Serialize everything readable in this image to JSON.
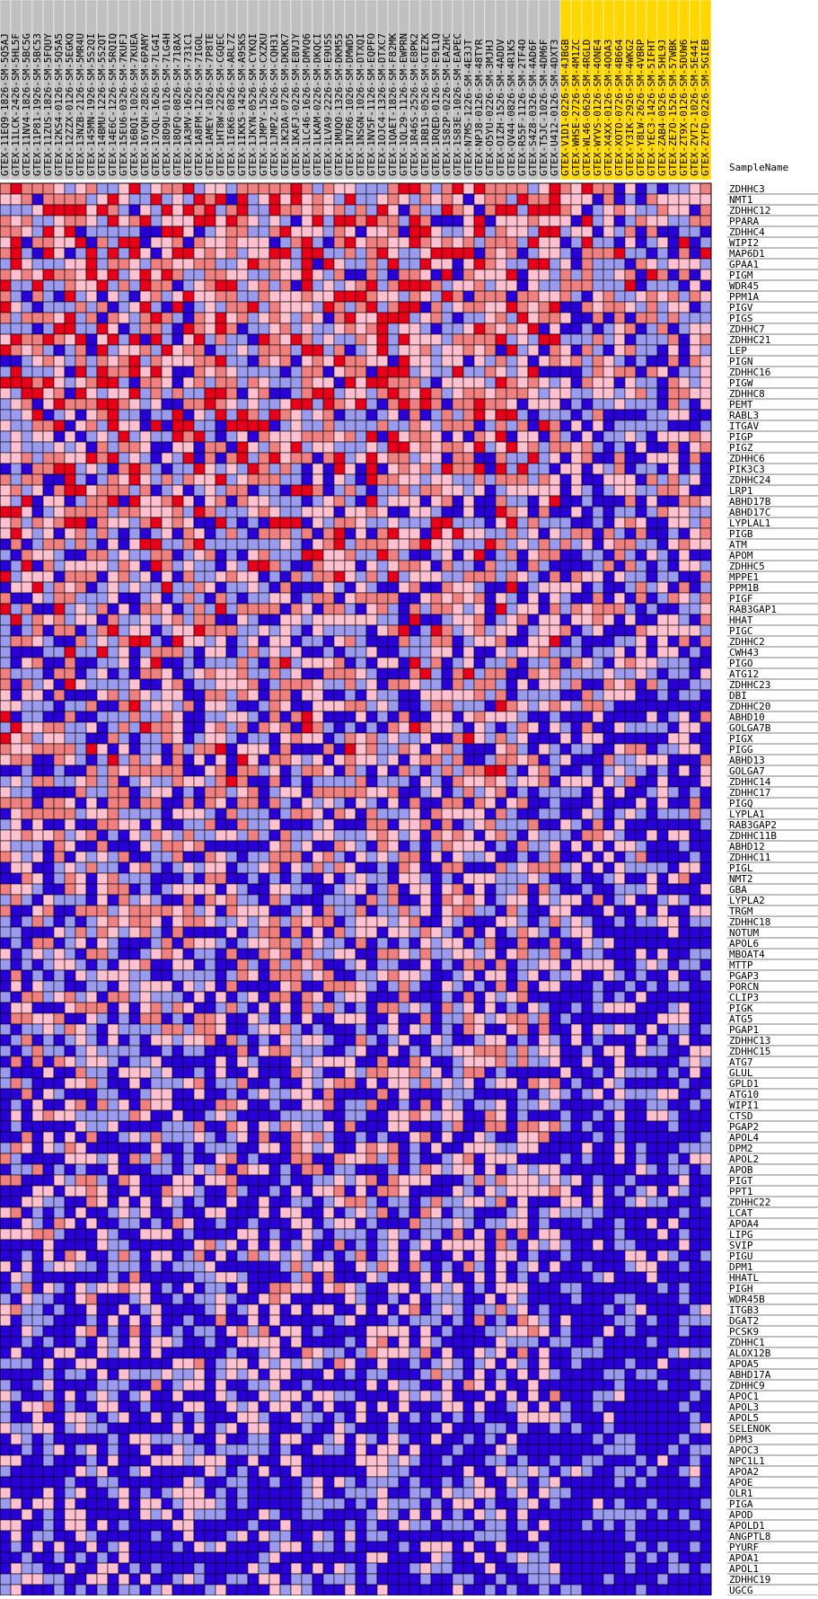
{
  "chart_data": {
    "type": "heatmap",
    "title": "",
    "xlabel": "",
    "ylabel": "",
    "row_header": "SampleName",
    "colors": {
      "high": "#e8001a",
      "mid_high": "#f08080",
      "mid": "#ffc0d0",
      "mid_low": "#9a9aee",
      "low": "#2a00d8",
      "group_a_header": "#c0c0c0",
      "group_b_header": "#ffd700"
    },
    "columns": [
      {
        "label": "GTEX-11EQ9-1826-SM-5Q5AJ",
        "group": "a"
      },
      {
        "label": "GTEX-11LCK-2426-SM-5HL5F",
        "group": "a"
      },
      {
        "label": "GTEX-11NV4-1826-SM-5BC5G",
        "group": "a"
      },
      {
        "label": "GTEX-11P81-1926-SM-5BC53",
        "group": "a"
      },
      {
        "label": "GTEX-11ZUS-1826-SM-5FQUY",
        "group": "a"
      },
      {
        "label": "GTEX-12KS4-0126-SM-5Q5A5",
        "group": "a"
      },
      {
        "label": "GTEX-12ZZX-0126-SM-5EGKQ",
        "group": "a"
      },
      {
        "label": "GTEX-13NZB-2126-SM-5MR4U",
        "group": "a"
      },
      {
        "label": "GTEX-145MN-1926-SM-5S2QI",
        "group": "a"
      },
      {
        "label": "GTEX-14BMU-1226-SM-5S2QT",
        "group": "a"
      },
      {
        "label": "GTEX-14E6C-1226-SM-5RQIQ",
        "group": "a"
      },
      {
        "label": "GTEX-15EU6-0326-SM-7KUFJ",
        "group": "a"
      },
      {
        "label": "GTEX-16BQI-1026-SM-7KUEA",
        "group": "a"
      },
      {
        "label": "GTEX-16YQH-2826-SM-6PAMY",
        "group": "a"
      },
      {
        "label": "GTEX-17GQL-1626-SM-7LG4I",
        "group": "a"
      },
      {
        "label": "GTEX-18D9U-0126-SM-7LG4H",
        "group": "a"
      },
      {
        "label": "GTEX-18QFQ-0826-SM-718AX",
        "group": "a"
      },
      {
        "label": "GTEX-1A3MV-1626-SM-731C1",
        "group": "a"
      },
      {
        "label": "GTEX-1A8FM-1226-SM-7IGOL",
        "group": "a"
      },
      {
        "label": "GTEX-1AMEY-1026-SM-7P8TE",
        "group": "a"
      },
      {
        "label": "GTEX-1HT8W-2226-SM-CGQEC",
        "group": "a"
      },
      {
        "label": "GTEX-1I6K6-0826-SM-ARL7Z",
        "group": "a"
      },
      {
        "label": "GTEX-1IKK5-1426-SM-A9SKS",
        "group": "a"
      },
      {
        "label": "GTEX-1JKYN-0526-SM-CYKQI",
        "group": "a"
      },
      {
        "label": "GTEX-1JMPY-1526-SM-CXZKU",
        "group": "a"
      },
      {
        "label": "GTEX-1JMPZ-1626-SM-CQH31",
        "group": "a"
      },
      {
        "label": "GTEX-1K2DA-0726-SM-DKDK7",
        "group": "a"
      },
      {
        "label": "GTEX-1KAFJ-0226-SM-E8VJY",
        "group": "a"
      },
      {
        "label": "GTEX-1LC46-1626-SM-DMVQ6",
        "group": "a"
      },
      {
        "label": "GTEX-1LKAM-0226-SM-DKQCI",
        "group": "a"
      },
      {
        "label": "GTEX-1LVA9-2226-SM-E9U5S",
        "group": "a"
      },
      {
        "label": "GTEX-1MUQO-1326-SM-DKM55",
        "group": "a"
      },
      {
        "label": "GTEX-1N7R6-1026-SM-DMWD5",
        "group": "a"
      },
      {
        "label": "GTEX-1NSGN-1026-SM-DTXQI",
        "group": "a"
      },
      {
        "label": "GTEX-1NV5F-1126-SM-EQPFO",
        "group": "a"
      },
      {
        "label": "GTEX-1OJC4-1326-SM-DTXC7",
        "group": "a"
      },
      {
        "label": "GTEX-1QAET-1826-SM-F82MK",
        "group": "a"
      },
      {
        "label": "GTEX-1QL29-1126-SM-EWPRN",
        "group": "a"
      },
      {
        "label": "GTEX-1R46S-2526-SM-E8PK2",
        "group": "a"
      },
      {
        "label": "GTEX-1RB15-0526-SM-GTEZK",
        "group": "a"
      },
      {
        "label": "GTEX-1RQED-0126-SM-E9L1Q",
        "group": "a"
      },
      {
        "label": "GTEX-1S82P-0226-SM-EAZHC",
        "group": "a"
      },
      {
        "label": "GTEX-1S83E-1026-SM-EAPEC",
        "group": "a"
      },
      {
        "label": "GTEX-N7MS-1226-SM-4E3JT",
        "group": "a"
      },
      {
        "label": "GTEX-NPJ8-0126-SM-48TYR",
        "group": "a"
      },
      {
        "label": "GTEX-O5YU-0226-SM-3MJHJ",
        "group": "a"
      },
      {
        "label": "GTEX-OIZH-1526-SM-4ADDV",
        "group": "a"
      },
      {
        "label": "GTEX-QV44-0826-SM-4R1K5",
        "group": "a"
      },
      {
        "label": "GTEX-R55F-1126-SM-2TF4O",
        "group": "a"
      },
      {
        "label": "GTEX-S4Z8-0326-SM-4AD6F",
        "group": "a"
      },
      {
        "label": "GTEX-T5JC-1026-SM-4DM6F",
        "group": "a"
      },
      {
        "label": "GTEX-U412-0126-SM-4DXT3",
        "group": "a"
      },
      {
        "label": "GTEX-V1D1-0226-SM-4JBGB",
        "group": "b"
      },
      {
        "label": "GTEX-WHSE-2726-SM-4M1ZC",
        "group": "b"
      },
      {
        "label": "GTEX-WL46-0626-SM-4RGLD",
        "group": "b"
      },
      {
        "label": "GTEX-WYVS-0126-SM-4ONE4",
        "group": "b"
      },
      {
        "label": "GTEX-X4XX-0126-SM-4OOA3",
        "group": "b"
      },
      {
        "label": "GTEX-XOTO-0726-SM-4B664",
        "group": "b"
      },
      {
        "label": "GTEX-Y3IK-2926-SM-4WKG2",
        "group": "b"
      },
      {
        "label": "GTEX-Y8LW-2626-SM-4VBRP",
        "group": "b"
      },
      {
        "label": "GTEX-YEC3-1426-SM-5IFHT",
        "group": "b"
      },
      {
        "label": "GTEX-ZAB4-0526-SM-5HL9J",
        "group": "b"
      },
      {
        "label": "GTEX-ZE7O-1526-SM-57WBK",
        "group": "b"
      },
      {
        "label": "GTEX-ZT9X-0126-SM-5DUW6",
        "group": "b"
      },
      {
        "label": "GTEX-ZVT2-1026-SM-5E44I",
        "group": "b"
      },
      {
        "label": "GTEX-ZYFD-0226-SM-5GIEB",
        "group": "b"
      }
    ],
    "rows": [
      "ZDHHC3",
      "NMT1",
      "ZDHHC12",
      "PPARA",
      "ZDHHC4",
      "WIPI2",
      "MAP6D1",
      "GPAA1",
      "PIGM",
      "WDR45",
      "PPM1A",
      "PIGV",
      "PIGS",
      "ZDHHC7",
      "ZDHHC21",
      "LEP",
      "PIGN",
      "ZDHHC16",
      "PIGW",
      "ZDHHC8",
      "PEMT",
      "RABL3",
      "ITGAV",
      "PIGP",
      "PIGZ",
      "ZDHHC6",
      "PIK3C3",
      "ZDHHC24",
      "LRP1",
      "ABHD17B",
      "ABHD17C",
      "LYPLAL1",
      "PIGB",
      "ATM",
      "APOM",
      "ZDHHC5",
      "MPPE1",
      "PPM1B",
      "PIGF",
      "RAB3GAP1",
      "HHAT",
      "PIGC",
      "ZDHHC2",
      "CWH43",
      "PIGO",
      "ATG12",
      "ZDHHC23",
      "DBI",
      "ZDHHC20",
      "ABHD10",
      "GOLGA7B",
      "PIGX",
      "PIGG",
      "ABHD13",
      "GOLGA7",
      "ZDHHC14",
      "ZDHHC17",
      "PIGQ",
      "LYPLA1",
      "RAB3GAP2",
      "ZDHHC11B",
      "ABHD12",
      "ZDHHC11",
      "PIGL",
      "NMT2",
      "GBA",
      "LYPLA2",
      "TRGM",
      "ZDHHC18",
      "NOTUM",
      "APOL6",
      "MBOAT4",
      "MTTP",
      "PGAP3",
      "PORCN",
      "CLIP3",
      "PIGK",
      "ATG5",
      "PGAP1",
      "ZDHHC13",
      "ZDHHC15",
      "ATG7",
      "GLUL",
      "GPLD1",
      "ATG10",
      "WIPI1",
      "CTSD",
      "PGAP2",
      "APOL4",
      "DPM2",
      "APOL2",
      "APOB",
      "PIGT",
      "PPT1",
      "ZDHHC22",
      "LCAT",
      "APOA4",
      "LIPG",
      "SVIP",
      "PIGU",
      "DPM1",
      "HHATL",
      "PIGH",
      "WDR45B",
      "ITGB3",
      "DGAT2",
      "PCSK9",
      "ZDHHC1",
      "ALOX12B",
      "APOA5",
      "ABHD17A",
      "ZDHHC9",
      "APOC1",
      "APOL3",
      "APOL5",
      "SELENOK",
      "DPM3",
      "APOC3",
      "NPC1L1",
      "APOA2",
      "APOE",
      "OLR1",
      "PIGA",
      "APOD",
      "APOLD1",
      "ANGPTL8",
      "PYURF",
      "APOA1",
      "APOL1",
      "ZDHHC19",
      "UGCG"
    ],
    "seed": 20240611
  }
}
